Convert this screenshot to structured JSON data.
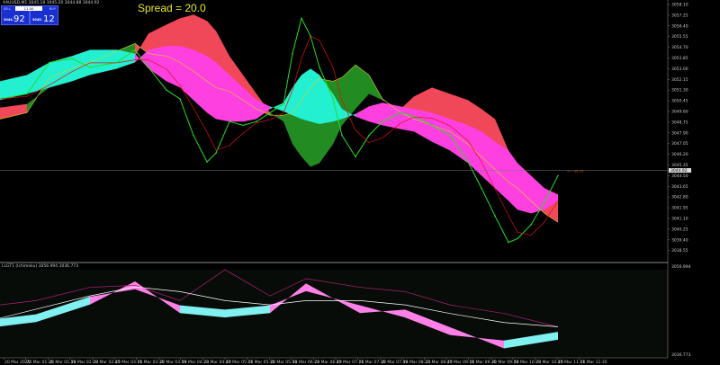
{
  "header": {
    "symbol_info": "XAUUSD,M1  3045.18 3045.20 3044.88 3044.92"
  },
  "spread_label": "Spread = 20.0",
  "trade_panel": {
    "sell_label": "SELL",
    "buy_label": "BUY",
    "lot": "11.00",
    "sell_price_small": "3044.",
    "sell_price_big": "92",
    "buy_price_small": "3045.",
    "buy_price_big": "12"
  },
  "current_price_label": "3044.92",
  "arrow_label": "<--- 00:29",
  "indicator_header": "LLGT1 (Ichimoku) 3056.994 3036.773",
  "colors": {
    "background": "#000000",
    "price": "#22dd22",
    "ma": "#e01010",
    "bull_cloud": "#228b22",
    "bear_cloud": "#f04858",
    "inner_up": "#22f0d0",
    "inner_down": "#ff40e0",
    "osc_white": "#ffffff",
    "osc_magenta": "#b0207a"
  },
  "chart_data": [
    {
      "type": "line",
      "title": "",
      "ylim": [
        3038.2,
        3058.4
      ],
      "y_ticks": [
        "3058.10",
        "3057.25",
        "3056.40",
        "3055.55",
        "3054.70",
        "3053.85",
        "3053.00",
        "3052.15",
        "3051.30",
        "3050.45",
        "3049.60",
        "3048.75",
        "3047.90",
        "3047.05",
        "3046.20",
        "3045.35",
        "3044.50",
        "3043.65",
        "3042.80",
        "3041.95",
        "3041.10",
        "3040.25",
        "3039.40",
        "3038.55"
      ],
      "x": [
        "00:57",
        "01:27",
        "01:52",
        "02:17",
        "02:37",
        "03:07",
        "03:27",
        "03:42",
        "04:02",
        "04:17",
        "04:32",
        "04:47",
        "04:57",
        "05:12",
        "05:27",
        "05:42",
        "05:57",
        "06:12",
        "06:22",
        "06:32",
        "06:42",
        "06:52",
        "07:07",
        "07:17",
        "07:32",
        "07:47",
        "08:02",
        "08:22",
        "08:37",
        "08:57",
        "09:17",
        "09:37",
        "09:52",
        "10:07",
        "10:22",
        "10:32",
        "10:47",
        "11:02",
        "11:17"
      ],
      "price": [
        3050.6,
        3051.0,
        3053.5,
        3053.8,
        3053.1,
        3053.5,
        3054.5,
        3053.1,
        3051.3,
        3050.6,
        3047.7,
        3045.6,
        3046.3,
        3048.8,
        3048.5,
        3048.8,
        3049.5,
        3050.2,
        3054.2,
        3057.0,
        3055.6,
        3053.1,
        3050.6,
        3047.7,
        3046.0,
        3047.7,
        3048.8,
        3049.5,
        3049.2,
        3048.5,
        3047.7,
        3045.6,
        3043.5,
        3041.3,
        3039.2,
        3039.5,
        3040.6,
        3042.4,
        3044.5
      ],
      "cloud_outer_a": [
        3049.9,
        3050.2,
        3051.5,
        3052.0,
        3052.8,
        3053.6,
        3054.0,
        3055.8,
        3056.5,
        3057.0,
        3057.3,
        3056.8,
        3056.0,
        3054.0,
        3052.5,
        3051.0,
        3049.5,
        3048.8,
        3047.0,
        3046.0,
        3045.2,
        3045.5,
        3047.0,
        3048.5,
        3049.8,
        3051.0,
        3050.5,
        3049.8,
        3050.8,
        3051.5,
        3051.0,
        3050.5,
        3049.8,
        3049.0,
        3046.5,
        3045.0,
        3044.2,
        3043.5,
        3043.0
      ],
      "cloud_outer_b": [
        3049.0,
        3049.5,
        3052.3,
        3053.0,
        3053.5,
        3054.4,
        3055.0,
        3054.2,
        3054.0,
        3053.5,
        3052.8,
        3052.0,
        3051.5,
        3051.2,
        3050.5,
        3049.8,
        3049.3,
        3049.3,
        3049.5,
        3050.5,
        3051.5,
        3052.2,
        3052.0,
        3052.3,
        3053.3,
        3052.5,
        3050.6,
        3049.5,
        3049.0,
        3048.5,
        3048.0,
        3047.0,
        3046.0,
        3045.0,
        3044.0,
        3043.5,
        3042.5,
        3041.5,
        3040.8
      ],
      "cloud_inner_a": [
        3052.0,
        3052.5,
        3053.5,
        3054.0,
        3054.5,
        3054.5,
        3054.2,
        3053.0,
        3052.0,
        3051.5,
        3050.5,
        3049.5,
        3049.0,
        3048.8,
        3048.8,
        3049.0,
        3049.8,
        3050.3,
        3051.5,
        3052.5,
        3053.0,
        3052.5,
        3051.0,
        3049.8,
        3049.2,
        3048.8,
        3048.5,
        3048.2,
        3048.0,
        3047.2,
        3046.5,
        3045.5,
        3044.5,
        3043.5,
        3042.5,
        3041.8,
        3041.5,
        3041.8,
        3042.5
      ],
      "cloud_inner_b": [
        3050.5,
        3051.0,
        3051.5,
        3052.0,
        3052.5,
        3053.0,
        3053.5,
        3054.5,
        3054.8,
        3054.8,
        3054.5,
        3054.0,
        3053.5,
        3052.5,
        3051.5,
        3050.5,
        3050.0,
        3049.6,
        3049.3,
        3049.0,
        3048.8,
        3048.6,
        3048.8,
        3049.0,
        3049.4,
        3050.0,
        3050.3,
        3050.0,
        3049.8,
        3049.5,
        3049.0,
        3048.5,
        3048.0,
        3047.2,
        3046.5,
        3045.5,
        3044.5,
        3043.5,
        3043.0
      ],
      "current_price": 3044.92
    },
    {
      "type": "line",
      "title": "",
      "ylim": [
        3036.773,
        3056.994
      ],
      "y_ticks": [
        "3056.994",
        "3036.773"
      ],
      "x": [
        "00:57",
        "01:37",
        "02:37",
        "03:27",
        "04:17",
        "05:07",
        "05:57",
        "06:37",
        "07:37",
        "08:27",
        "09:17",
        "10:17",
        "11:17"
      ],
      "white_line": [
        3044.6,
        3046.9,
        3050.3,
        3052.6,
        3051.4,
        3049.1,
        3048.0,
        3049.1,
        3049.1,
        3048.0,
        3045.8,
        3043.5,
        3042.4
      ],
      "magenta_line": [
        3048.0,
        3049.1,
        3052.5,
        3053.0,
        3049.1,
        3057.0,
        3050.3,
        3054.7,
        3052.5,
        3051.4,
        3048.0,
        3045.8,
        3042.4
      ],
      "band_a": [
        3044.5,
        3045.6,
        3050.1,
        3052.0,
        3047.9,
        3046.8,
        3047.9,
        3051.5,
        3047.9,
        3044.8,
        3040.3,
        3038.9,
        3041.1
      ],
      "band_b": [
        3042.5,
        3043.6,
        3048.1,
        3054.0,
        3045.9,
        3044.8,
        3045.9,
        3053.5,
        3045.9,
        3046.8,
        3042.3,
        3036.9,
        3039.1
      ]
    }
  ],
  "time_axis": [
    "20 Mar 2025",
    "20 Mar 01:35",
    "20 Mar 01:59",
    "20 Mar 02:23",
    "20 Mar 02:47",
    "20 Mar 03:11",
    "20 Mar 03:35",
    "20 Mar 03:59",
    "20 Mar 04:23",
    "20 Mar 04:47",
    "20 Mar 05:11",
    "20 Mar 05:35",
    "20 Mar 05:59",
    "20 Mar 06:23",
    "20 Mar 06:47",
    "20 Mar 07:11",
    "20 Mar 07:35",
    "20 Mar 07:59",
    "20 Mar 08:23",
    "20 Mar 08:47",
    "20 Mar 09:11",
    "20 Mar 09:35",
    "20 Mar 09:59",
    "20 Mar 10:23",
    "20 Mar 10:47",
    "20 Mar 11:11",
    "20 Mar 11:35"
  ]
}
